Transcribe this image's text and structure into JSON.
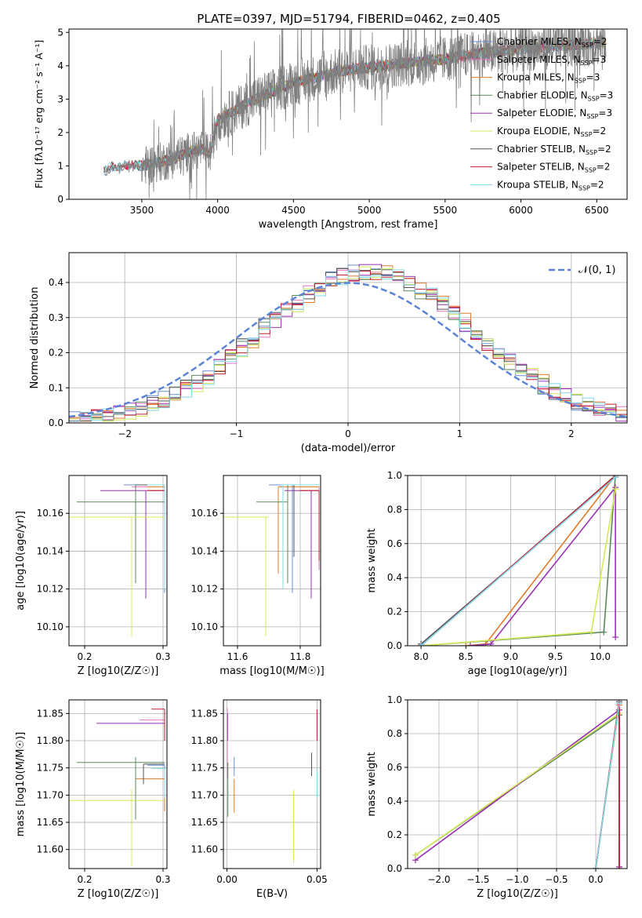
{
  "figure": {
    "title": "PLATE=0397, MJD=51794, FIBERID=0462, z=0.405"
  },
  "models": [
    {
      "name": "Chabrier MILES, N$_{SSP}$=2",
      "label_main": "Chabrier MILES, N",
      "label_sub": "SSP",
      "label_tail": "=2",
      "color": "#6b8dd6"
    },
    {
      "name": "Salpeter MILES, N$_{SSP}$=3",
      "label_main": "Salpeter MILES, N",
      "label_sub": "SSP",
      "label_tail": "=3",
      "color": "#e377c2"
    },
    {
      "name": "Kroupa MILES, N$_{SSP}$=3",
      "label_main": "Kroupa MILES, N",
      "label_sub": "SSP",
      "label_tail": "=3",
      "color": "#e07b2a"
    },
    {
      "name": "Chabrier ELODIE, N$_{SSP}$=3",
      "label_main": "Chabrier ELODIE, N",
      "label_sub": "SSP",
      "label_tail": "=3",
      "color": "#5a8a5a"
    },
    {
      "name": "Salpeter ELODIE, N$_{SSP}$=3",
      "label_main": "Salpeter ELODIE, N",
      "label_sub": "SSP",
      "label_tail": "=3",
      "color": "#9b30b0"
    },
    {
      "name": "Kroupa ELODIE, N$_{SSP}$=2",
      "label_main": "Kroupa ELODIE, N",
      "label_sub": "SSP",
      "label_tail": "=2",
      "color": "#d4e85a"
    },
    {
      "name": "Chabrier STELIB, N$_{SSP}$=2",
      "label_main": "Chabrier STELIB, N",
      "label_sub": "SSP",
      "label_tail": "=2",
      "color": "#555555"
    },
    {
      "name": "Salpeter STELIB, N$_{SSP}$=2",
      "label_main": "Salpeter STELIB, N",
      "label_sub": "SSP",
      "label_tail": "=2",
      "color": "#c0202a"
    },
    {
      "name": "Kroupa STELIB, N$_{SSP}$=2",
      "label_main": "Kroupa STELIB, N",
      "label_sub": "SSP",
      "label_tail": "=2",
      "color": "#80d8e8"
    }
  ],
  "chart_data": [
    {
      "id": "spectrum",
      "type": "line",
      "xlabel": "wavelength [Angstrom, rest frame]",
      "ylabel": "Flux [f_λ 10^-17 erg cm^-2 s^-1 A^-1]",
      "xlim": [
        3020,
        6700
      ],
      "ylim": [
        0,
        5.1
      ],
      "xticks": [
        3500,
        4000,
        4500,
        5000,
        5500,
        6000,
        6500
      ],
      "yticks": [
        0,
        1,
        2,
        3,
        4,
        5
      ],
      "legend": "top-right",
      "data_start": 3250,
      "data_end": 6560,
      "continuum_x": [
        3250,
        3300,
        3400,
        3500,
        3600,
        3700,
        3800,
        3900,
        3950,
        4000,
        4100,
        4200,
        4300,
        4400,
        4500,
        4600,
        4700,
        4800,
        4900,
        5000,
        5100,
        5200,
        5300,
        5400,
        5500,
        5600,
        5700,
        5800,
        5900,
        6000,
        6100,
        6200,
        6300,
        6400,
        6500,
        6560
      ],
      "continuum_y": [
        0.85,
        0.95,
        1.0,
        1.0,
        1.1,
        1.2,
        1.4,
        1.5,
        1.35,
        2.4,
        2.6,
        2.9,
        3.1,
        3.3,
        3.5,
        3.6,
        3.7,
        3.85,
        3.9,
        3.95,
        4.0,
        4.05,
        4.1,
        4.15,
        4.2,
        4.3,
        4.35,
        4.4,
        4.45,
        4.5,
        4.55,
        4.6,
        4.6,
        4.65,
        4.7,
        4.7
      ],
      "grid": false
    },
    {
      "id": "residuals",
      "type": "area",
      "xlabel": "(data-model)/error",
      "ylabel": "Normed distribution",
      "xlim": [
        -2.5,
        2.5
      ],
      "ylim": [
        0,
        0.485
      ],
      "xticks": [
        -2,
        -1,
        0,
        1,
        2
      ],
      "yticks": [
        0.0,
        0.1,
        0.2,
        0.3,
        0.4
      ],
      "ytick_labels": [
        "0.0",
        "0.1",
        "0.2",
        "0.3",
        "0.4"
      ],
      "legend": "top-right",
      "normal_label": "𝒩(0, 1)",
      "normal_color": "#5b84d6",
      "bin_width": 0.1,
      "grid": true
    },
    {
      "id": "age-vs-Z",
      "type": "scatter",
      "xlabel": "Z [log10(Z/Z☉)]",
      "ylabel": "age  [log10(age/yr)]",
      "xlim": [
        0.18,
        0.305
      ],
      "ylim": [
        10.09,
        10.18
      ],
      "xticks": [
        0.2,
        0.3
      ],
      "yticks": [
        10.1,
        10.12,
        10.14,
        10.16
      ],
      "grid": true,
      "segments": [
        {
          "c": 0,
          "h": [
            0.25,
            0.302,
            10.175
          ],
          "v": [
            0.302,
            10.175,
            10.118
          ]
        },
        {
          "c": 1,
          "h": [
            0.26,
            0.302,
            10.174
          ],
          "v": [
            0.302,
            10.174,
            10.13
          ]
        },
        {
          "c": 2,
          "h": [
            0.28,
            0.302,
            10.174
          ],
          "v": [
            0.302,
            10.174,
            10.128
          ]
        },
        {
          "c": 3,
          "h": [
            0.19,
            0.302,
            10.166
          ],
          "v": [
            0.265,
            10.175,
            10.123
          ]
        },
        {
          "c": 4,
          "h": [
            0.22,
            0.302,
            10.172
          ],
          "v": [
            0.278,
            10.172,
            10.115
          ]
        },
        {
          "c": 5,
          "h": [
            0.18,
            0.302,
            10.158
          ],
          "v": [
            0.26,
            10.158,
            10.095
          ]
        },
        {
          "c": 6,
          "h": [
            0.265,
            0.302,
            10.175
          ],
          "v": [
            0.302,
            10.175,
            10.128
          ]
        },
        {
          "c": 7,
          "h": [
            0.28,
            0.302,
            10.172
          ],
          "v": [
            0.302,
            10.172,
            10.13
          ]
        },
        {
          "c": 8,
          "h": [
            0.28,
            0.302,
            10.175
          ],
          "v": [
            0.302,
            10.175,
            10.12
          ]
        }
      ]
    },
    {
      "id": "age-vs-mass",
      "type": "scatter",
      "xlabel": "mass [log10(M/M☉)]",
      "ylabel": "",
      "xlim": [
        11.555,
        11.865
      ],
      "ylim": [
        10.09,
        10.18
      ],
      "xticks": [
        11.6,
        11.8
      ],
      "yticks": [
        10.1,
        10.12,
        10.14,
        10.16
      ],
      "grid": true,
      "segments": [
        {
          "c": 0,
          "h": [
            11.7,
            11.775,
            10.175
          ],
          "v": [
            11.775,
            10.175,
            10.118
          ]
        },
        {
          "c": 1,
          "h": [
            11.75,
            11.86,
            10.174
          ],
          "v": [
            11.86,
            10.174,
            10.13
          ]
        },
        {
          "c": 2,
          "h": [
            11.73,
            11.86,
            10.174
          ],
          "v": [
            11.73,
            10.174,
            10.128
          ]
        },
        {
          "c": 3,
          "h": [
            11.66,
            11.76,
            10.166
          ],
          "v": [
            11.76,
            10.175,
            10.123
          ]
        },
        {
          "c": 4,
          "h": [
            11.75,
            11.86,
            10.172
          ],
          "v": [
            11.835,
            10.172,
            10.115
          ]
        },
        {
          "c": 5,
          "h": [
            11.555,
            11.7,
            10.158
          ],
          "v": [
            11.69,
            10.158,
            10.095
          ]
        },
        {
          "c": 6,
          "h": [
            11.77,
            11.86,
            10.175
          ],
          "v": [
            11.78,
            10.175,
            10.137
          ]
        },
        {
          "c": 7,
          "h": [
            11.8,
            11.86,
            10.172
          ],
          "v": [
            11.86,
            10.172,
            10.135
          ]
        },
        {
          "c": 8,
          "h": [
            11.74,
            11.86,
            10.175
          ],
          "v": [
            11.745,
            10.175,
            10.12
          ]
        }
      ]
    },
    {
      "id": "cum-mass-vs-age",
      "type": "line",
      "xlabel": "age  [log10(age/yr)]",
      "ylabel": "mass weight",
      "xlim": [
        7.85,
        10.3
      ],
      "ylim": [
        0,
        1.0
      ],
      "xticks": [
        8.0,
        8.5,
        9.0,
        9.5,
        10.0
      ],
      "yticks": [
        0.0,
        0.2,
        0.4,
        0.6,
        0.8,
        1.0
      ],
      "grid": true,
      "series": [
        {
          "c": 0,
          "x": [
            8.0,
            10.17
          ],
          "y": [
            0.0,
            1.0
          ]
        },
        {
          "c": 1,
          "x": [
            8.0,
            10.17
          ],
          "y": [
            0.01,
            0.99
          ]
        },
        {
          "c": 2,
          "x": [
            8.5,
            8.72,
            10.17
          ],
          "y": [
            0.0,
            0.01,
            1.0
          ]
        },
        {
          "c": 3,
          "x": [
            8.0,
            10.04,
            10.17
          ],
          "y": [
            0.0,
            0.08,
            1.0
          ]
        },
        {
          "c": 4,
          "x": [
            8.55,
            8.78,
            10.17,
            10.17
          ],
          "y": [
            0.0,
            0.01,
            0.93,
            0.05
          ]
        },
        {
          "c": 5,
          "x": [
            8.0,
            9.9,
            10.17
          ],
          "y": [
            0.0,
            0.08,
            0.92
          ]
        },
        {
          "c": 6,
          "x": [
            8.0,
            10.17
          ],
          "y": [
            0.01,
            0.99
          ]
        },
        {
          "c": 7,
          "x": [
            8.0,
            10.17
          ],
          "y": [
            0.0,
            1.0
          ]
        },
        {
          "c": 8,
          "x": [
            8.0,
            10.17
          ],
          "y": [
            0.0,
            0.99
          ]
        }
      ]
    },
    {
      "id": "mass-vs-Z",
      "type": "scatter",
      "xlabel": "Z [log10(Z/Z☉)]",
      "ylabel": "mass [log10(M/M☉)]",
      "xlim": [
        0.18,
        0.305
      ],
      "ylim": [
        11.565,
        11.875
      ],
      "xticks": [
        0.2,
        0.3
      ],
      "yticks": [
        11.6,
        11.65,
        11.7,
        11.75,
        11.8,
        11.85
      ],
      "grid": true,
      "segments": [
        {
          "c": 0,
          "h": [
            0.28,
            0.302,
            11.755
          ],
          "v": [
            0.302,
            11.755,
            11.74
          ]
        },
        {
          "c": 1,
          "h": [
            0.27,
            0.302,
            11.838
          ],
          "v": [
            0.302,
            11.838,
            11.8
          ]
        },
        {
          "c": 2,
          "h": [
            0.265,
            0.302,
            11.73
          ],
          "v": [
            0.302,
            11.73,
            11.67
          ]
        },
        {
          "c": 3,
          "h": [
            0.19,
            0.302,
            11.76
          ],
          "v": [
            0.265,
            11.77,
            11.655
          ]
        },
        {
          "c": 4,
          "h": [
            0.215,
            0.302,
            11.832
          ],
          "v": [
            0.302,
            11.832,
            11.8
          ]
        },
        {
          "c": 5,
          "h": [
            0.18,
            0.302,
            11.69
          ],
          "v": [
            0.26,
            11.71,
            11.57
          ]
        },
        {
          "c": 6,
          "h": [
            0.275,
            0.302,
            11.757
          ],
          "v": [
            0.275,
            11.757,
            11.72
          ]
        },
        {
          "c": 7,
          "h": [
            0.285,
            0.302,
            11.858
          ],
          "v": [
            0.302,
            11.858,
            11.8
          ]
        },
        {
          "c": 8,
          "h": [
            0.285,
            0.302,
            11.749
          ],
          "v": [
            0.302,
            11.749,
            11.695
          ]
        }
      ]
    },
    {
      "id": "mass-vs-EBV",
      "type": "scatter",
      "xlabel": "E(B-V)",
      "ylabel": "",
      "xlim": [
        -0.002,
        0.052
      ],
      "ylim": [
        11.565,
        11.875
      ],
      "xticks": [
        0.0,
        0.05
      ],
      "xtick_labels": [
        "0.00",
        "0.05"
      ],
      "yticks": [
        11.6,
        11.65,
        11.7,
        11.75,
        11.8,
        11.85
      ],
      "grid": true,
      "marks": [
        {
          "c": 0,
          "x": 0.004,
          "y0": 11.77,
          "y1": 11.735
        },
        {
          "c": 1,
          "x": 0.0002,
          "y0": 11.86,
          "y1": 11.73
        },
        {
          "c": 2,
          "x": 0.004,
          "y0": 11.73,
          "y1": 11.668
        },
        {
          "c": 3,
          "x": 0.0005,
          "y0": 11.76,
          "y1": 11.66
        },
        {
          "c": 4,
          "x": 0.0003,
          "y0": 11.85,
          "y1": 11.8
        },
        {
          "c": 5,
          "x": 0.037,
          "y0": 11.71,
          "y1": 11.575
        },
        {
          "c": 6,
          "x": 0.047,
          "y0": 11.778,
          "y1": 11.735
        },
        {
          "c": 7,
          "x": 0.05,
          "y0": 11.858,
          "y1": 11.8
        },
        {
          "c": 8,
          "x": 0.05,
          "y0": 11.75,
          "y1": 11.695
        }
      ]
    },
    {
      "id": "cum-mass-vs-Z",
      "type": "line",
      "xlabel": "Z [log10(Z/Z☉)]",
      "ylabel": "mass weight",
      "xlim": [
        -2.4,
        0.4
      ],
      "ylim": [
        0,
        1.0
      ],
      "xticks": [
        -2.0,
        -1.5,
        -1.0,
        -0.5,
        0.0
      ],
      "yticks": [
        0.0,
        0.2,
        0.4,
        0.6,
        0.8,
        1.0
      ],
      "grid": true,
      "series": [
        {
          "c": 0,
          "x": [
            0.0,
            0.3,
            0.3
          ],
          "y": [
            0.0,
            0.98,
            0.0
          ]
        },
        {
          "c": 1,
          "x": [
            0.0,
            0.3
          ],
          "y": [
            0.0,
            0.98
          ]
        },
        {
          "c": 2,
          "x": [
            0.0,
            0.3
          ],
          "y": [
            0.0,
            0.97
          ]
        },
        {
          "c": 3,
          "x": [
            -2.3,
            0.3,
            0.3
          ],
          "y": [
            0.08,
            0.91,
            0.01
          ]
        },
        {
          "c": 4,
          "x": [
            -2.3,
            0.3,
            0.3
          ],
          "y": [
            0.05,
            0.94,
            0.01
          ]
        },
        {
          "c": 5,
          "x": [
            -2.3,
            0.3
          ],
          "y": [
            0.08,
            0.92
          ]
        },
        {
          "c": 6,
          "x": [
            0.0,
            0.3
          ],
          "y": [
            0.0,
            0.99
          ]
        },
        {
          "c": 7,
          "x": [
            0.0,
            0.3,
            0.3
          ],
          "y": [
            0.0,
            1.0,
            0.0
          ]
        },
        {
          "c": 8,
          "x": [
            0.0,
            0.3
          ],
          "y": [
            0.0,
            0.98
          ]
        }
      ]
    }
  ]
}
